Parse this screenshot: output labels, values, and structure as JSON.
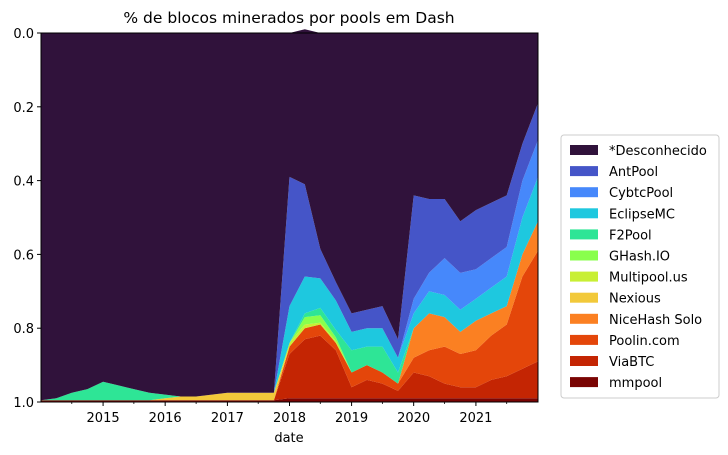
{
  "chart_data": {
    "type": "area",
    "title": "% de blocos minerados por pools em Dash",
    "xlabel": "date",
    "ylabel": "",
    "ylim": [
      1.0,
      0.0
    ],
    "y_inverted": true,
    "stacked": true,
    "grid": false,
    "legend_placement": "outside-right",
    "x_ticks": [
      "2015",
      "2016",
      "2017",
      "2018",
      "2019",
      "2020",
      "2021"
    ],
    "y_ticks": [
      "0.0",
      "0.2",
      "0.4",
      "0.6",
      "0.8",
      "1.0"
    ],
    "xlim": [
      "2014-01-01",
      "2022-01-01"
    ],
    "x": [
      "2014-01-01",
      "2014-04-01",
      "2014-07-01",
      "2014-10-01",
      "2015-01-01",
      "2015-04-01",
      "2015-07-01",
      "2015-10-01",
      "2016-01-01",
      "2016-04-01",
      "2016-07-01",
      "2016-10-01",
      "2017-01-01",
      "2017-04-01",
      "2017-07-01",
      "2017-10-01",
      "2018-01-01",
      "2018-04-01",
      "2018-07-01",
      "2018-10-01",
      "2019-01-01",
      "2019-04-01",
      "2019-07-01",
      "2019-10-01",
      "2020-01-01",
      "2020-04-01",
      "2020-07-01",
      "2020-10-01",
      "2021-01-01",
      "2021-04-01",
      "2021-07-01",
      "2021-10-01",
      "2022-01-01"
    ],
    "series": [
      {
        "name": "mmpool",
        "color": "#7a0403",
        "values": [
          0.005,
          0.005,
          0.005,
          0.005,
          0.005,
          0.005,
          0.005,
          0.005,
          0.005,
          0.005,
          0.005,
          0.005,
          0.005,
          0.005,
          0.005,
          0.005,
          0.01,
          0.01,
          0.01,
          0.01,
          0.01,
          0.01,
          0.01,
          0.01,
          0.01,
          0.01,
          0.01,
          0.01,
          0.01,
          0.01,
          0.01,
          0.01,
          0.01
        ]
      },
      {
        "name": "ViaBTC",
        "color": "#c42503",
        "values": [
          0,
          0,
          0,
          0,
          0,
          0,
          0,
          0,
          0,
          0,
          0,
          0,
          0,
          0,
          0,
          0,
          0.12,
          0.16,
          0.17,
          0.13,
          0.03,
          0.05,
          0.04,
          0.02,
          0.07,
          0.06,
          0.04,
          0.03,
          0.03,
          0.05,
          0.06,
          0.08,
          0.1
        ]
      },
      {
        "name": "Poolin.com",
        "color": "#e4460a",
        "values": [
          0,
          0,
          0,
          0,
          0,
          0,
          0,
          0,
          0,
          0,
          0,
          0,
          0,
          0,
          0,
          0,
          0.02,
          0.03,
          0.03,
          0.02,
          0.04,
          0.04,
          0.03,
          0.02,
          0.04,
          0.07,
          0.1,
          0.09,
          0.1,
          0.12,
          0.14,
          0.25,
          0.3
        ]
      },
      {
        "name": "NiceHash Solo",
        "color": "#fb8022",
        "values": [
          0,
          0,
          0,
          0,
          0,
          0,
          0,
          0,
          0,
          0,
          0,
          0,
          0,
          0,
          0,
          0,
          0,
          0,
          0,
          0,
          0,
          0,
          0,
          0,
          0.08,
          0.1,
          0.08,
          0.06,
          0.08,
          0.06,
          0.05,
          0.06,
          0.08
        ]
      },
      {
        "name": "Nexious",
        "color": "#f2c93a",
        "values": [
          0,
          0,
          0,
          0,
          0,
          0,
          0,
          0,
          0.005,
          0.01,
          0.01,
          0.015,
          0.02,
          0.02,
          0.02,
          0.02,
          0,
          0,
          0,
          0,
          0,
          0,
          0,
          0,
          0,
          0,
          0,
          0,
          0,
          0,
          0,
          0,
          0
        ]
      },
      {
        "name": "Multipool.us",
        "color": "#c8ef34",
        "values": [
          0,
          0,
          0,
          0,
          0,
          0,
          0,
          0,
          0,
          0,
          0,
          0,
          0,
          0,
          0,
          0,
          0.01,
          0.01,
          0.005,
          0.005,
          0,
          0,
          0,
          0,
          0,
          0,
          0,
          0,
          0,
          0,
          0,
          0,
          0
        ]
      },
      {
        "name": "GHash.IO",
        "color": "#89ff4c",
        "values": [
          0,
          0,
          0,
          0,
          0,
          0,
          0,
          0,
          0,
          0,
          0,
          0,
          0,
          0,
          0,
          0,
          0,
          0.02,
          0.02,
          0.01,
          0,
          0,
          0,
          0,
          0,
          0,
          0,
          0,
          0,
          0,
          0,
          0,
          0
        ]
      },
      {
        "name": "F2Pool",
        "color": "#2ee596",
        "values": [
          0,
          0.005,
          0.02,
          0.03,
          0.05,
          0.04,
          0.03,
          0.02,
          0.01,
          0,
          0,
          0,
          0,
          0,
          0,
          0,
          0,
          0.01,
          0.02,
          0.02,
          0.06,
          0.05,
          0.07,
          0.03,
          0,
          0,
          0,
          0,
          0,
          0,
          0,
          0,
          0
        ]
      },
      {
        "name": "EclipseMC",
        "color": "#1ec8df",
        "values": [
          0,
          0,
          0,
          0,
          0,
          0,
          0,
          0,
          0,
          0,
          0,
          0,
          0,
          0,
          0,
          0,
          0.1,
          0.1,
          0.08,
          0.08,
          0.05,
          0.05,
          0.05,
          0.04,
          0.04,
          0.06,
          0.06,
          0.06,
          0.06,
          0.07,
          0.08,
          0.1,
          0.12
        ]
      },
      {
        "name": "CybtcPool",
        "color": "#4688fb",
        "values": [
          0,
          0,
          0,
          0,
          0,
          0,
          0,
          0,
          0,
          0,
          0,
          0,
          0,
          0,
          0,
          0,
          0,
          0,
          0,
          0,
          0,
          0,
          0,
          0,
          0.04,
          0.05,
          0.1,
          0.1,
          0.08,
          0.08,
          0.08,
          0.1,
          0.1
        ]
      },
      {
        "name": "AntPool",
        "color": "#4555c8",
        "values": [
          0,
          0,
          0,
          0,
          0,
          0,
          0,
          0,
          0,
          0,
          0,
          0,
          0,
          0,
          0,
          0,
          0.35,
          0.25,
          0.08,
          0.05,
          0.05,
          0.05,
          0.06,
          0.05,
          0.28,
          0.2,
          0.16,
          0.14,
          0.16,
          0.15,
          0.14,
          0.1,
          0.1
        ]
      },
      {
        "name": "*Desconhecido",
        "color": "#30123b",
        "values": [
          0.995,
          0.99,
          0.975,
          0.965,
          0.945,
          0.955,
          0.965,
          0.975,
          0.98,
          0.985,
          0.985,
          0.98,
          0.975,
          0.975,
          0.975,
          0.975,
          0.39,
          0.42,
          0.585,
          0.675,
          0.76,
          0.75,
          0.74,
          0.83,
          0.44,
          0.45,
          0.45,
          0.51,
          0.48,
          0.46,
          0.44,
          0.3,
          0.19
        ]
      }
    ]
  }
}
